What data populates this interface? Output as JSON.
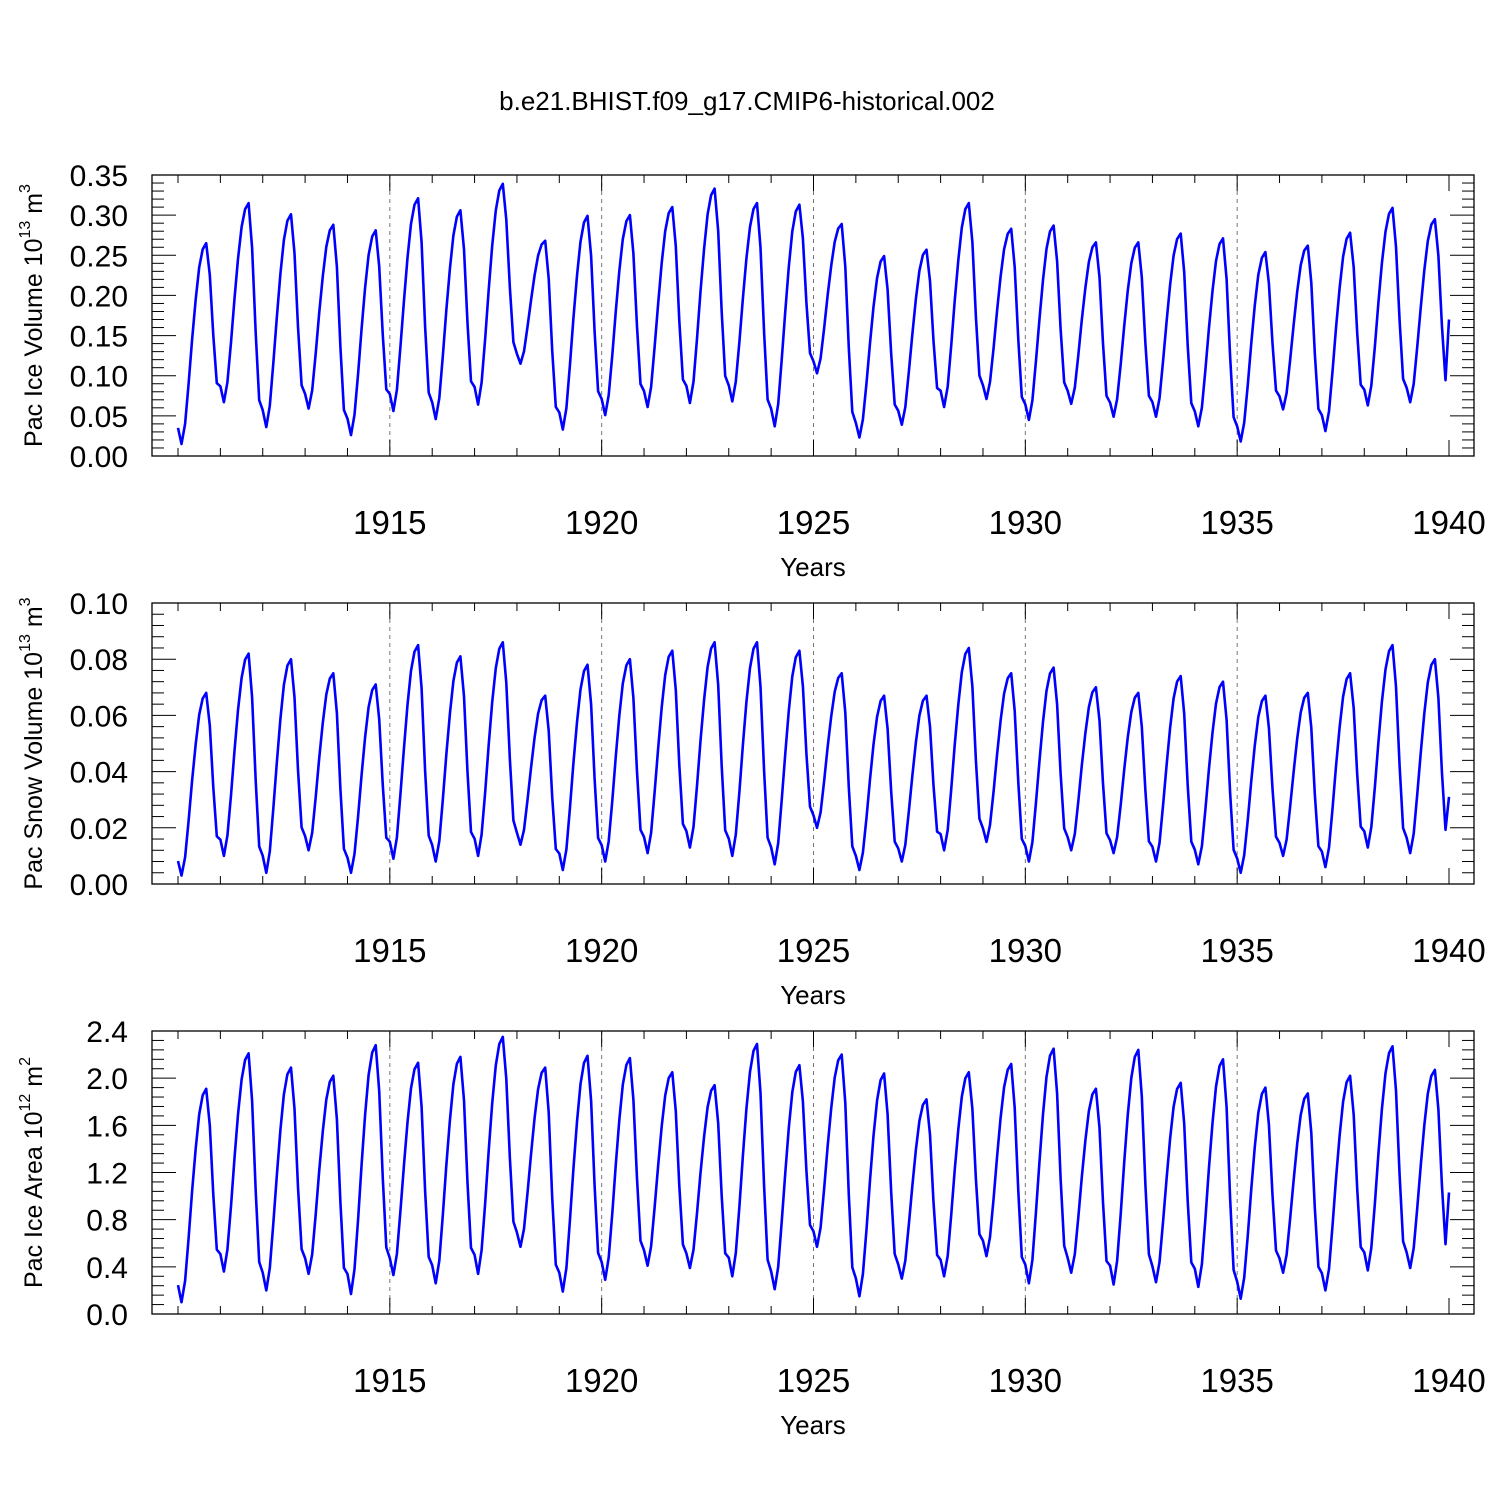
{
  "title": "b.e21.BHIST.f09_g17.CMIP6-historical.002",
  "chart_data": [
    {
      "type": "line",
      "ylabel": "Pac Ice Volume 10",
      "ylabel_exp": "13",
      "ylabel_unit": " m",
      "ylabel_unit_exp": "3",
      "xlabel": "Years",
      "xlim": [
        1910.0,
        1940.0
      ],
      "ylim": [
        0.0,
        0.35
      ],
      "yticks": [
        0.0,
        0.05,
        0.1,
        0.15,
        0.2,
        0.25,
        0.3,
        0.35
      ],
      "ytick_labels": [
        "0.00",
        "0.05",
        "0.10",
        "0.15",
        "0.20",
        "0.25",
        "0.30",
        "0.35"
      ],
      "xticks": [
        1915,
        1920,
        1925,
        1930,
        1935,
        1940
      ],
      "xtick_labels": [
        "1915",
        "1920",
        "1925",
        "1930",
        "1935",
        "1940"
      ],
      "grid": "dashed vertical at major x ticks",
      "line_color": "#0000ff",
      "annual": [
        {
          "max": 0.265,
          "min": 0.015
        },
        {
          "max": 0.315,
          "min": 0.067
        },
        {
          "max": 0.301,
          "min": 0.036
        },
        {
          "max": 0.288,
          "min": 0.059
        },
        {
          "max": 0.281,
          "min": 0.026
        },
        {
          "max": 0.321,
          "min": 0.056
        },
        {
          "max": 0.306,
          "min": 0.046
        },
        {
          "max": 0.339,
          "min": 0.064
        },
        {
          "max": 0.268,
          "min": 0.115
        },
        {
          "max": 0.299,
          "min": 0.033
        },
        {
          "max": 0.3,
          "min": 0.051
        },
        {
          "max": 0.31,
          "min": 0.061
        },
        {
          "max": 0.333,
          "min": 0.066
        },
        {
          "max": 0.315,
          "min": 0.068
        },
        {
          "max": 0.313,
          "min": 0.037
        },
        {
          "max": 0.289,
          "min": 0.103
        },
        {
          "max": 0.249,
          "min": 0.023
        },
        {
          "max": 0.257,
          "min": 0.039
        },
        {
          "max": 0.315,
          "min": 0.061
        },
        {
          "max": 0.283,
          "min": 0.071
        },
        {
          "max": 0.287,
          "min": 0.045
        },
        {
          "max": 0.266,
          "min": 0.065
        },
        {
          "max": 0.266,
          "min": 0.049
        },
        {
          "max": 0.277,
          "min": 0.049
        },
        {
          "max": 0.271,
          "min": 0.037
        },
        {
          "max": 0.254,
          "min": 0.018
        },
        {
          "max": 0.262,
          "min": 0.058
        },
        {
          "max": 0.278,
          "min": 0.031
        },
        {
          "max": 0.309,
          "min": 0.063
        },
        {
          "max": 0.295,
          "min": 0.067
        }
      ],
      "end_value": 0.17
    },
    {
      "type": "line",
      "ylabel": "Pac Snow Volume 10",
      "ylabel_exp": "13",
      "ylabel_unit": " m",
      "ylabel_unit_exp": "3",
      "xlabel": "Years",
      "xlim": [
        1910.0,
        1940.0
      ],
      "ylim": [
        0.0,
        0.1
      ],
      "yticks": [
        0.0,
        0.02,
        0.04,
        0.06,
        0.08,
        0.1
      ],
      "ytick_labels": [
        "0.00",
        "0.02",
        "0.04",
        "0.06",
        "0.08",
        "0.10"
      ],
      "xticks": [
        1915,
        1920,
        1925,
        1930,
        1935,
        1940
      ],
      "xtick_labels": [
        "1915",
        "1920",
        "1925",
        "1930",
        "1935",
        "1940"
      ],
      "grid": "dashed vertical at major x ticks",
      "line_color": "#0000ff",
      "annual": [
        {
          "max": 0.068,
          "min": 0.003
        },
        {
          "max": 0.082,
          "min": 0.01
        },
        {
          "max": 0.08,
          "min": 0.004
        },
        {
          "max": 0.075,
          "min": 0.012
        },
        {
          "max": 0.071,
          "min": 0.004
        },
        {
          "max": 0.085,
          "min": 0.009
        },
        {
          "max": 0.081,
          "min": 0.008
        },
        {
          "max": 0.086,
          "min": 0.01
        },
        {
          "max": 0.067,
          "min": 0.014
        },
        {
          "max": 0.078,
          "min": 0.005
        },
        {
          "max": 0.08,
          "min": 0.008
        },
        {
          "max": 0.083,
          "min": 0.011
        },
        {
          "max": 0.086,
          "min": 0.013
        },
        {
          "max": 0.086,
          "min": 0.01
        },
        {
          "max": 0.083,
          "min": 0.007
        },
        {
          "max": 0.075,
          "min": 0.02
        },
        {
          "max": 0.067,
          "min": 0.005
        },
        {
          "max": 0.067,
          "min": 0.008
        },
        {
          "max": 0.084,
          "min": 0.012
        },
        {
          "max": 0.075,
          "min": 0.015
        },
        {
          "max": 0.077,
          "min": 0.008
        },
        {
          "max": 0.07,
          "min": 0.012
        },
        {
          "max": 0.068,
          "min": 0.011
        },
        {
          "max": 0.074,
          "min": 0.008
        },
        {
          "max": 0.072,
          "min": 0.007
        },
        {
          "max": 0.067,
          "min": 0.004
        },
        {
          "max": 0.068,
          "min": 0.01
        },
        {
          "max": 0.075,
          "min": 0.006
        },
        {
          "max": 0.085,
          "min": 0.013
        },
        {
          "max": 0.08,
          "min": 0.011
        }
      ],
      "end_value": 0.031
    },
    {
      "type": "line",
      "ylabel": "Pac Ice Area 10",
      "ylabel_exp": "12",
      "ylabel_unit": " m",
      "ylabel_unit_exp": "2",
      "xlabel": "Years",
      "xlim": [
        1910.0,
        1940.0
      ],
      "ylim": [
        0.0,
        2.4
      ],
      "yticks": [
        0.0,
        0.4,
        0.8,
        1.2,
        1.6,
        2.0,
        2.4
      ],
      "ytick_labels": [
        "0.0",
        "0.4",
        "0.8",
        "1.2",
        "1.6",
        "2.0",
        "2.4"
      ],
      "xticks": [
        1915,
        1920,
        1925,
        1930,
        1935,
        1940
      ],
      "xtick_labels": [
        "1915",
        "1920",
        "1925",
        "1930",
        "1935",
        "1940"
      ],
      "grid": "dashed vertical at major x ticks",
      "line_color": "#0000ff",
      "annual": [
        {
          "max": 1.91,
          "min": 0.1
        },
        {
          "max": 2.21,
          "min": 0.36
        },
        {
          "max": 2.09,
          "min": 0.2
        },
        {
          "max": 2.02,
          "min": 0.34
        },
        {
          "max": 2.28,
          "min": 0.17
        },
        {
          "max": 2.13,
          "min": 0.33
        },
        {
          "max": 2.18,
          "min": 0.26
        },
        {
          "max": 2.35,
          "min": 0.34
        },
        {
          "max": 2.09,
          "min": 0.57
        },
        {
          "max": 2.19,
          "min": 0.19
        },
        {
          "max": 2.17,
          "min": 0.29
        },
        {
          "max": 2.05,
          "min": 0.41
        },
        {
          "max": 1.94,
          "min": 0.39
        },
        {
          "max": 2.29,
          "min": 0.32
        },
        {
          "max": 2.11,
          "min": 0.21
        },
        {
          "max": 2.2,
          "min": 0.57
        },
        {
          "max": 2.04,
          "min": 0.15
        },
        {
          "max": 1.82,
          "min": 0.3
        },
        {
          "max": 2.05,
          "min": 0.32
        },
        {
          "max": 2.12,
          "min": 0.49
        },
        {
          "max": 2.25,
          "min": 0.26
        },
        {
          "max": 1.91,
          "min": 0.35
        },
        {
          "max": 2.24,
          "min": 0.25
        },
        {
          "max": 1.96,
          "min": 0.27
        },
        {
          "max": 2.16,
          "min": 0.23
        },
        {
          "max": 1.92,
          "min": 0.13
        },
        {
          "max": 1.87,
          "min": 0.35
        },
        {
          "max": 2.02,
          "min": 0.2
        },
        {
          "max": 2.27,
          "min": 0.37
        },
        {
          "max": 2.07,
          "min": 0.39
        }
      ],
      "end_value": 1.03
    }
  ]
}
